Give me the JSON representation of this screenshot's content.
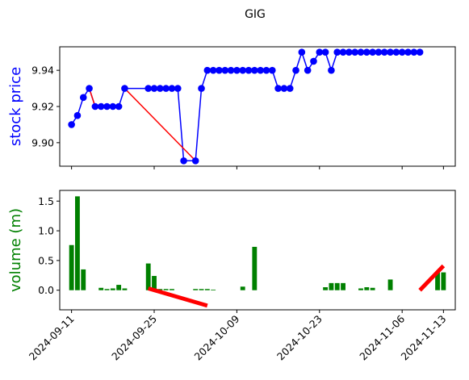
{
  "chart_data": [
    {
      "type": "line",
      "title": "GIG",
      "ylabel": "stock price",
      "ylabel_color": "#0000ff",
      "ylim": [
        9.887,
        9.953
      ],
      "yticks": [
        9.9,
        9.92,
        9.94
      ],
      "ytick_labels": [
        "9.90",
        "9.92",
        "9.94"
      ],
      "xlim": [
        "2024-09-09",
        "2024-11-15"
      ],
      "grid": false,
      "series": [
        {
          "color": "#0000ff",
          "marker": "circle",
          "x": [
            "2024-09-11",
            "2024-09-12",
            "2024-09-13",
            "2024-09-14",
            "2024-09-15",
            "2024-09-16",
            "2024-09-17",
            "2024-09-18",
            "2024-09-19",
            "2024-09-20",
            "2024-09-24",
            "2024-09-25",
            "2024-09-26",
            "2024-09-27",
            "2024-09-28",
            "2024-09-29",
            "2024-09-30",
            "2024-10-02",
            "2024-10-03",
            "2024-10-04",
            "2024-10-05",
            "2024-10-06",
            "2024-10-07",
            "2024-10-08",
            "2024-10-09",
            "2024-10-10",
            "2024-10-11",
            "2024-10-12",
            "2024-10-13",
            "2024-10-14",
            "2024-10-15",
            "2024-10-16",
            "2024-10-17",
            "2024-10-18",
            "2024-10-19",
            "2024-10-20",
            "2024-10-21",
            "2024-10-22",
            "2024-10-23",
            "2024-10-24",
            "2024-10-25",
            "2024-10-26",
            "2024-10-27",
            "2024-10-28",
            "2024-10-29",
            "2024-10-30",
            "2024-10-31",
            "2024-11-01",
            "2024-11-02",
            "2024-11-03",
            "2024-11-04",
            "2024-11-05",
            "2024-11-06",
            "2024-11-07",
            "2024-11-08",
            "2024-11-09"
          ],
          "y": [
            9.91,
            9.915,
            9.925,
            9.93,
            9.92,
            9.92,
            9.92,
            9.92,
            9.92,
            9.93,
            9.93,
            9.93,
            9.93,
            9.93,
            9.93,
            9.93,
            9.89,
            9.89,
            9.93,
            9.94,
            9.94,
            9.94,
            9.94,
            9.94,
            9.94,
            9.94,
            9.94,
            9.94,
            9.94,
            9.94,
            9.94,
            9.93,
            9.93,
            9.93,
            9.94,
            9.95,
            9.94,
            9.945,
            9.95,
            9.95,
            9.94,
            9.95,
            9.95,
            9.95,
            9.95,
            9.95,
            9.95,
            9.95,
            9.95,
            9.95,
            9.95,
            9.95,
            9.95,
            9.95,
            9.95,
            9.95
          ]
        }
      ],
      "highlight_segments": [
        {
          "color": "#ff0000",
          "x": [
            "2024-09-14",
            "2024-09-15"
          ],
          "y": [
            9.93,
            9.92
          ]
        },
        {
          "color": "#ff0000",
          "x": [
            "2024-09-20",
            "2024-10-02"
          ],
          "y": [
            9.93,
            9.89
          ]
        }
      ]
    },
    {
      "type": "bar",
      "ylabel": "volume (m)",
      "ylabel_color": "#008000",
      "ylim": [
        -0.33,
        1.68
      ],
      "yticks": [
        0.0,
        0.5,
        1.0,
        1.5
      ],
      "ytick_labels": [
        "0.0",
        "0.5",
        "1.0",
        "1.5"
      ],
      "xlim": [
        "2024-09-09",
        "2024-11-15"
      ],
      "xticks": [
        "2024-09-11",
        "2024-09-25",
        "2024-10-09",
        "2024-10-23",
        "2024-11-06",
        "2024-11-13"
      ],
      "xtick_labels": [
        "2024-09-11",
        "2024-09-25",
        "2024-10-09",
        "2024-10-23",
        "2024-11-06",
        "2024-11-13"
      ],
      "grid": false,
      "bar_color": "#008000",
      "bars": {
        "x": [
          "2024-09-11",
          "2024-09-12",
          "2024-09-13",
          "2024-09-16",
          "2024-09-17",
          "2024-09-18",
          "2024-09-19",
          "2024-09-20",
          "2024-09-24",
          "2024-09-25",
          "2024-09-26",
          "2024-09-27",
          "2024-09-28",
          "2024-10-02",
          "2024-10-03",
          "2024-10-04",
          "2024-10-05",
          "2024-10-10",
          "2024-10-12",
          "2024-10-24",
          "2024-10-25",
          "2024-10-26",
          "2024-10-27",
          "2024-10-30",
          "2024-10-31",
          "2024-11-01",
          "2024-11-04",
          "2024-11-12",
          "2024-11-13"
        ],
        "values": [
          0.76,
          1.58,
          0.35,
          0.04,
          0.02,
          0.03,
          0.09,
          0.03,
          0.45,
          0.24,
          0.02,
          0.02,
          0.02,
          0.02,
          0.02,
          0.02,
          0.01,
          0.06,
          0.73,
          0.05,
          0.12,
          0.12,
          0.12,
          0.03,
          0.05,
          0.04,
          0.18,
          0.31,
          0.3
        ]
      },
      "trend_segments": [
        {
          "color": "#ff0000",
          "x": [
            "2024-09-24",
            "2024-10-04"
          ],
          "y": [
            0.03,
            -0.26
          ]
        },
        {
          "color": "#ff0000",
          "x": [
            "2024-11-09",
            "2024-11-13"
          ],
          "y": [
            0.0,
            0.41
          ]
        }
      ]
    }
  ]
}
